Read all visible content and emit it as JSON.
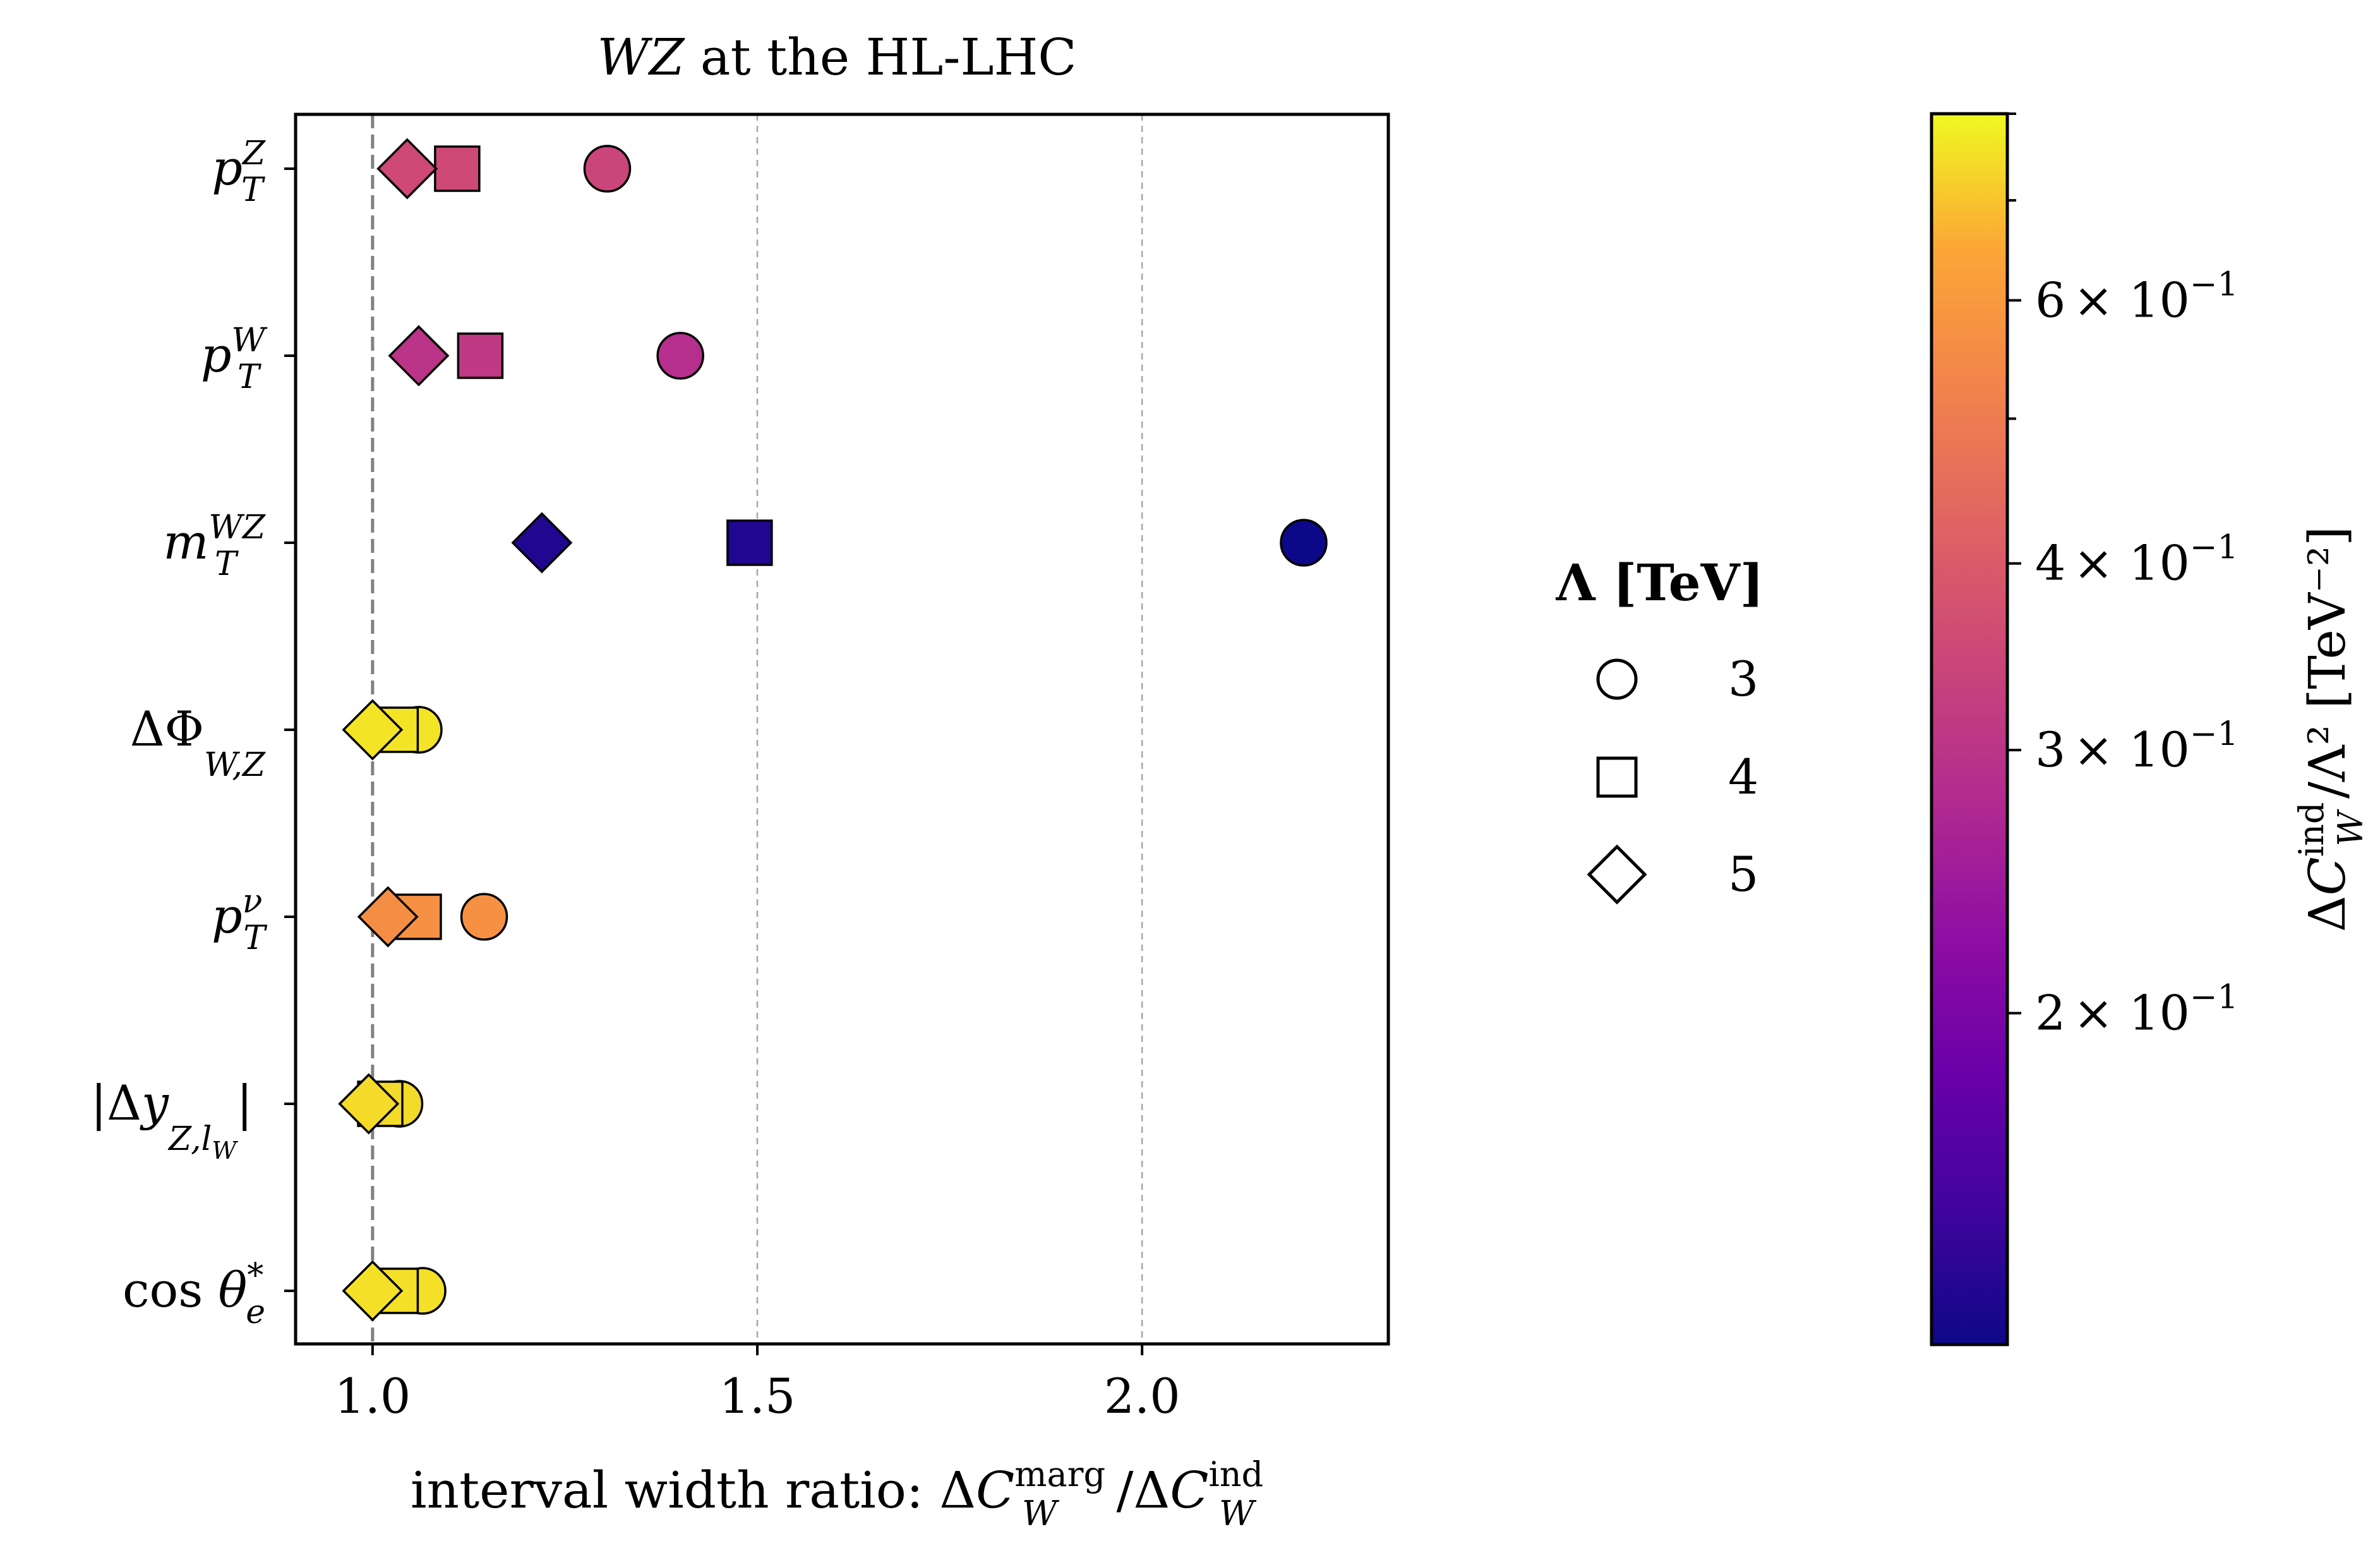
{
  "chart_data": {
    "type": "scatter",
    "title": "WZ at the HL-LHC",
    "title_parts": {
      "italic": "WZ",
      "rest": " at the HL-LHC"
    },
    "xlabel": "interval width ratio: ΔC_W^marg/ΔC_W^ind",
    "xlabel_parts": {
      "prefix": "interval width ratio: ",
      "d1": "Δ",
      "c1": "C",
      "sup1": "marg",
      "sub1": "W",
      "slash": "/",
      "d2": "Δ",
      "c2": "C",
      "sup2": "ind",
      "sub2": "W"
    },
    "xlim": [
      0.9,
      2.32
    ],
    "xticks": [
      "1.0",
      "1.5",
      "2.0"
    ],
    "xtick_values": [
      1.0,
      1.5,
      2.0
    ],
    "reference_line_x": 1.0,
    "grid": "x, dashed",
    "observables": [
      "p_T^Z",
      "p_T^W",
      "m_T^WZ",
      "ΔΦ_W,Z",
      "p_T^ν",
      "|Δy_Z,l_W|",
      "cos θ_e^*"
    ],
    "ytick_labels": [
      {
        "pre": "",
        "main": "p",
        "sup": "Z",
        "sub": "T",
        "post": ""
      },
      {
        "pre": "",
        "main": "p",
        "sup": "W",
        "sub": "T",
        "post": ""
      },
      {
        "pre": "",
        "main": "m",
        "sup": "WZ",
        "sub": "T",
        "post": ""
      },
      {
        "pre": "ΔΦ",
        "main": "",
        "sup": "",
        "sub": "W,Z",
        "post": ""
      },
      {
        "pre": "",
        "main": "p",
        "sup": "ν",
        "sub": "T",
        "post": ""
      },
      {
        "pre": "|Δ",
        "main": "y",
        "sup": "",
        "sub": "Z,l",
        "post": "|"
      },
      {
        "pre": "cos ",
        "main": "θ",
        "sup": "*",
        "sub": "e",
        "post": ""
      }
    ],
    "legend": {
      "title": "Λ [TeV]",
      "position": "right of plot",
      "entries": [
        {
          "marker": "circle",
          "label": "3"
        },
        {
          "marker": "square",
          "label": "4"
        },
        {
          "marker": "diamond",
          "label": "5"
        }
      ]
    },
    "series": [
      {
        "name": "Λ = 3 TeV",
        "marker": "circle",
        "x": [
          1.305,
          1.4,
          2.21,
          1.06,
          1.145,
          1.035,
          1.065
        ],
        "color_value": [
          0.34,
          0.29,
          0.12,
          0.76,
          0.57,
          0.74,
          0.75
        ]
      },
      {
        "name": "Λ = 4 TeV",
        "marker": "square",
        "x": [
          1.11,
          1.14,
          1.49,
          1.03,
          1.06,
          1.01,
          1.03
        ],
        "color_value": [
          0.35,
          0.31,
          0.13,
          0.76,
          0.57,
          0.74,
          0.75
        ]
      },
      {
        "name": "Λ = 5 TeV",
        "marker": "diamond",
        "x": [
          1.045,
          1.06,
          1.22,
          1.0,
          1.02,
          0.995,
          1.0
        ],
        "color_value": [
          0.35,
          0.3,
          0.13,
          0.76,
          0.56,
          0.74,
          0.75
        ]
      }
    ],
    "colorbar": {
      "label": "ΔC_W^ind/Λ² [TeV⁻²]",
      "label_parts": {
        "d": "Δ",
        "c": "C",
        "sup": "ind",
        "sub": "W",
        "rest": "/Λ² [TeV⁻²]"
      },
      "scale": "log",
      "range": [
        0.12,
        0.8
      ],
      "colormap": "plasma",
      "ticks": [
        {
          "value": 0.2,
          "mantissa": "2",
          "times": "× 10",
          "exp": "−1"
        },
        {
          "value": 0.3,
          "mantissa": "3",
          "times": "× 10",
          "exp": "−1"
        },
        {
          "value": 0.4,
          "mantissa": "4",
          "times": "× 10",
          "exp": "−1"
        },
        {
          "value": 0.6,
          "mantissa": "6",
          "times": "× 10",
          "exp": "−1"
        }
      ],
      "minor_ticks": [
        0.5,
        0.7,
        0.8
      ]
    }
  }
}
